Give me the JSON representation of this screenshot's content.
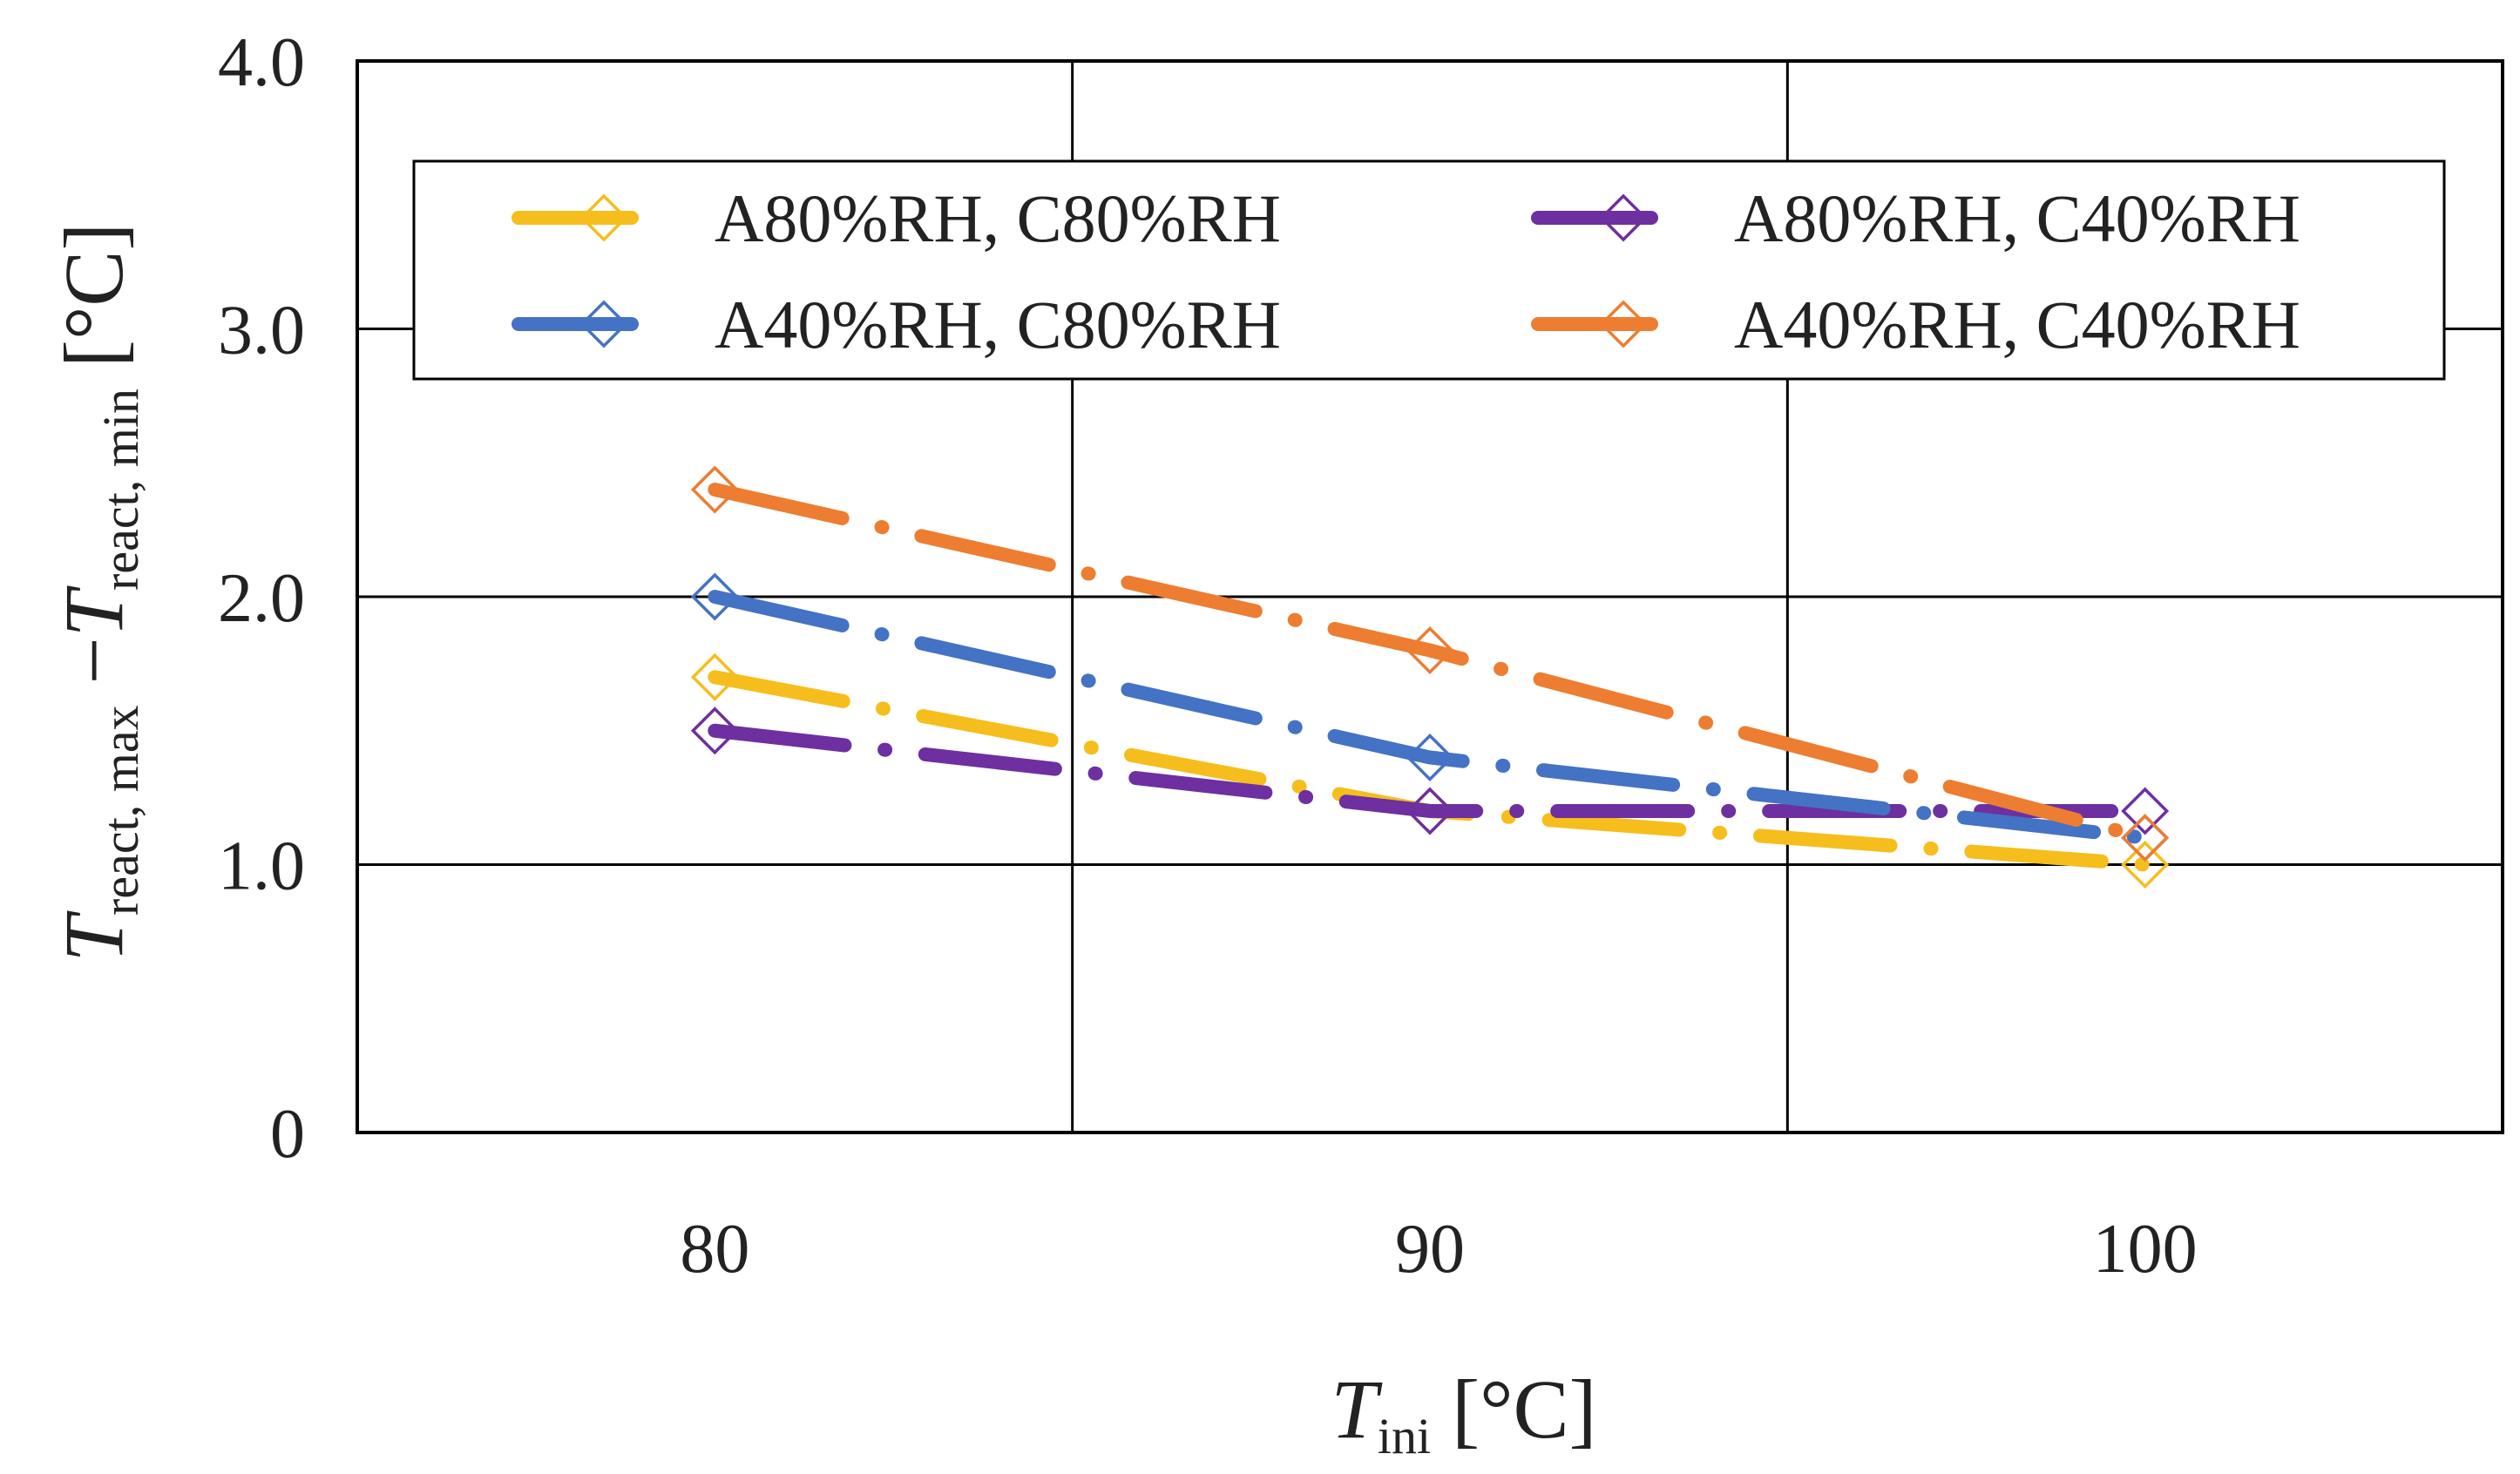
{
  "chart_data": {
    "type": "line",
    "title": "",
    "xlabel": {
      "main": "T",
      "sub": "ini",
      "unit": " [°C]"
    },
    "ylabel": {
      "t1": "T",
      "s1": "react, max",
      "minus": " −",
      "t2": "T",
      "s2": "react, min",
      "unit": " [°C]"
    },
    "x": [
      80,
      90,
      100
    ],
    "xlim": [
      75,
      105
    ],
    "ylim": [
      0,
      4.0
    ],
    "xticks": [
      80,
      90,
      100
    ],
    "xtick_labels": [
      "80",
      "90",
      "100"
    ],
    "yticks": [
      0,
      1.0,
      2.0,
      3.0,
      4.0
    ],
    "ytick_labels": [
      "0",
      "1.0",
      "2.0",
      "3.0",
      "4.0"
    ],
    "grid": true,
    "legend_position": "top",
    "series": [
      {
        "name": "A80%RH, C80%RH",
        "color": "#F5BE1D",
        "values": [
          1.7,
          1.2,
          1.0
        ]
      },
      {
        "name": "A80%RH, C40%RH",
        "color": "#6E2FA0",
        "values": [
          1.5,
          1.2,
          1.2
        ]
      },
      {
        "name": "A40%RH, C80%RH",
        "color": "#4472C4",
        "values": [
          2.0,
          1.4,
          1.1
        ]
      },
      {
        "name": "A40%RH, C40%RH",
        "color": "#ED7D31",
        "values": [
          2.4,
          1.8,
          1.1
        ]
      }
    ]
  }
}
